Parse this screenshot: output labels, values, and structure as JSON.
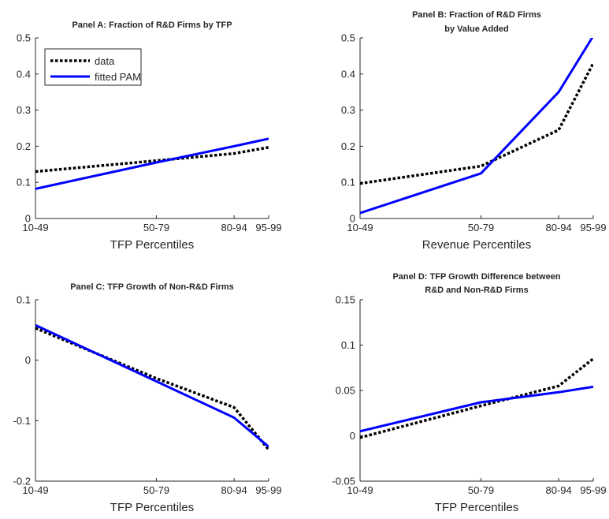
{
  "chart_data": [
    {
      "type": "line",
      "title": "Panel A: Fraction of R&D Firms by TFP",
      "xlabel": "TFP Percentiles",
      "ylabel": "",
      "categories": [
        "10-49",
        "50-79",
        "80-94",
        "95-99"
      ],
      "x": [
        29.5,
        64.5,
        87,
        97
      ],
      "ylim": [
        0,
        0.5
      ],
      "yticks": [
        "0",
        "0.1",
        "0.2",
        "0.3",
        "0.4",
        "0.5"
      ],
      "series": [
        {
          "name": "data",
          "values": [
            0.13,
            0.16,
            0.18,
            0.197
          ],
          "color": "#000000",
          "style": "dotted"
        },
        {
          "name": "fitted PAM",
          "values": [
            0.082,
            0.155,
            0.2,
            0.221
          ],
          "color": "#0000ff",
          "style": "solid"
        }
      ],
      "legend": "top-left",
      "grid": false
    },
    {
      "type": "line",
      "title": "Panel B: Fraction of R&D Firms by Value Added",
      "xlabel": "Revenue Percentiles",
      "ylabel": "",
      "categories": [
        "10-49",
        "50-79",
        "80-94",
        "95-99"
      ],
      "x": [
        29.5,
        64.5,
        87,
        97
      ],
      "ylim": [
        0,
        0.5
      ],
      "yticks": [
        "0",
        "0.1",
        "0.2",
        "0.3",
        "0.4",
        "0.5"
      ],
      "series": [
        {
          "values": [
            0.097,
            0.145,
            0.245,
            0.43
          ],
          "color": "#000000",
          "style": "dotted"
        },
        {
          "values": [
            0.015,
            0.125,
            0.35,
            0.505
          ],
          "color": "#0000ff",
          "style": "solid"
        }
      ],
      "grid": false
    },
    {
      "type": "line",
      "title": "Panel C: TFP Growth of Non-R&D Firms",
      "xlabel": "TFP Percentiles",
      "ylabel": "",
      "categories": [
        "10-49",
        "50-79",
        "80-94",
        "95-99"
      ],
      "x": [
        29.5,
        64.5,
        87,
        97
      ],
      "ylim": [
        -0.2,
        0.1
      ],
      "yticks": [
        "-0.2",
        "-0.1",
        "0",
        "0.1"
      ],
      "series": [
        {
          "values": [
            0.053,
            -0.03,
            -0.078,
            -0.148
          ],
          "color": "#000000",
          "style": "dotted"
        },
        {
          "values": [
            0.058,
            -0.035,
            -0.095,
            -0.143
          ],
          "color": "#0000ff",
          "style": "solid"
        }
      ],
      "grid": false
    },
    {
      "type": "line",
      "title": "Panel D: TFP Growth Difference between R&D and Non-R&D Firms",
      "xlabel": "TFP Percentiles",
      "ylabel": "",
      "categories": [
        "10-49",
        "50-79",
        "80-94",
        "95-99"
      ],
      "x": [
        29.5,
        64.5,
        87,
        97
      ],
      "ylim": [
        -0.05,
        0.15
      ],
      "yticks": [
        "-0.05",
        "0",
        "0.05",
        "0.1",
        "0.15"
      ],
      "series": [
        {
          "values": [
            -0.002,
            0.033,
            0.055,
            0.085
          ],
          "color": "#000000",
          "style": "dotted"
        },
        {
          "values": [
            0.005,
            0.037,
            0.048,
            0.054
          ],
          "color": "#0000ff",
          "style": "solid"
        }
      ],
      "grid": false
    }
  ]
}
